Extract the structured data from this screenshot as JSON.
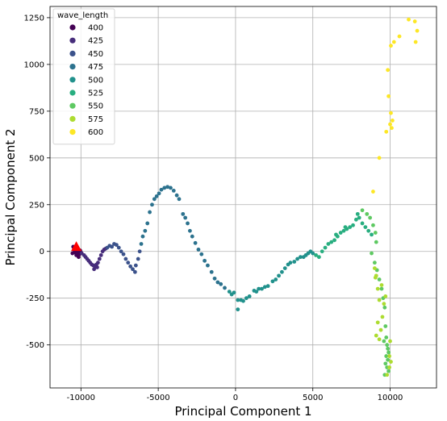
{
  "chart_data": {
    "type": "scatter",
    "title": "",
    "xlabel": "Principal Component 1",
    "ylabel": "Principal Component 2",
    "xlim": [
      -12000,
      13000
    ],
    "ylim": [
      -730,
      1310
    ],
    "xticks": [
      -10000,
      -5000,
      0,
      5000,
      10000
    ],
    "yticks": [
      -500,
      -250,
      0,
      250,
      500,
      750,
      1000,
      1250
    ],
    "grid": true,
    "legend": {
      "title": "wave_length",
      "placement": "top-left",
      "entries": [
        {
          "label": "400",
          "color": "#440154"
        },
        {
          "label": "425",
          "color": "#472d7b"
        },
        {
          "label": "450",
          "color": "#3b528b"
        },
        {
          "label": "475",
          "color": "#2c728e"
        },
        {
          "label": "500",
          "color": "#21918c"
        },
        {
          "label": "525",
          "color": "#28ae80"
        },
        {
          "label": "550",
          "color": "#5ec962"
        },
        {
          "label": "575",
          "color": "#addc30"
        },
        {
          "label": "600",
          "color": "#fde725"
        }
      ]
    },
    "marker": {
      "shape": "triangle",
      "color": "#ff0000",
      "x": -10300,
      "y": 20
    },
    "series": [
      {
        "name": "400",
        "color": "#440154",
        "points": [
          [
            -10500,
            25
          ],
          [
            -10450,
            10
          ],
          [
            -10400,
            -5
          ],
          [
            -10350,
            5
          ],
          [
            -10300,
            -20
          ],
          [
            -10250,
            -10
          ],
          [
            -10200,
            0
          ],
          [
            -10150,
            -30
          ],
          [
            -10100,
            -15
          ],
          [
            -10050,
            5
          ],
          [
            -10000,
            -5
          ],
          [
            -10550,
            -10
          ]
        ]
      },
      {
        "name": "425",
        "color": "#472d7b",
        "points": [
          [
            -9950,
            -10
          ],
          [
            -9800,
            -20
          ],
          [
            -9700,
            -30
          ],
          [
            -9600,
            -40
          ],
          [
            -9500,
            -50
          ],
          [
            -9400,
            -60
          ],
          [
            -9300,
            -70
          ],
          [
            -9200,
            -75
          ],
          [
            -9100,
            -80
          ],
          [
            -9000,
            -70
          ],
          [
            -8900,
            -60
          ],
          [
            -8800,
            -40
          ],
          [
            -8700,
            -20
          ],
          [
            -8600,
            0
          ],
          [
            -8500,
            10
          ],
          [
            -8400,
            15
          ],
          [
            -9150,
            -95
          ],
          [
            -8950,
            -85
          ]
        ]
      },
      {
        "name": "450",
        "color": "#3b528b",
        "points": [
          [
            -8300,
            20
          ],
          [
            -8150,
            30
          ],
          [
            -8000,
            25
          ],
          [
            -7850,
            40
          ],
          [
            -7700,
            35
          ],
          [
            -7550,
            20
          ],
          [
            -7400,
            0
          ],
          [
            -7250,
            -15
          ],
          [
            -7100,
            -40
          ],
          [
            -6950,
            -60
          ],
          [
            -6800,
            -80
          ],
          [
            -6650,
            -95
          ],
          [
            -6500,
            -110
          ],
          [
            -6450,
            -75
          ],
          [
            -6300,
            -40
          ],
          [
            -6200,
            0
          ]
        ]
      },
      {
        "name": "475",
        "color": "#2c728e",
        "points": [
          [
            -6100,
            40
          ],
          [
            -6000,
            80
          ],
          [
            -5850,
            110
          ],
          [
            -5700,
            150
          ],
          [
            -5550,
            210
          ],
          [
            -5400,
            250
          ],
          [
            -5250,
            280
          ],
          [
            -5100,
            295
          ],
          [
            -4950,
            310
          ],
          [
            -4800,
            330
          ],
          [
            -4600,
            340
          ],
          [
            -4400,
            345
          ],
          [
            -4200,
            340
          ],
          [
            -4000,
            325
          ],
          [
            -3800,
            300
          ],
          [
            -3650,
            280
          ],
          [
            -3400,
            200
          ],
          [
            -3250,
            180
          ],
          [
            -3100,
            150
          ],
          [
            -2950,
            110
          ],
          [
            -2800,
            80
          ],
          [
            -2600,
            45
          ],
          [
            -2400,
            10
          ],
          [
            -2200,
            -15
          ],
          [
            -2000,
            -50
          ],
          [
            -1800,
            -75
          ],
          [
            -1550,
            -110
          ],
          [
            -1350,
            -145
          ],
          [
            -1150,
            -165
          ],
          [
            -950,
            -175
          ],
          [
            -700,
            -195
          ]
        ]
      },
      {
        "name": "500",
        "color": "#21918c",
        "points": [
          [
            -400,
            -215
          ],
          [
            -250,
            -230
          ],
          [
            -100,
            -220
          ],
          [
            150,
            -260
          ],
          [
            350,
            -260
          ],
          [
            500,
            -265
          ],
          [
            700,
            -250
          ],
          [
            900,
            -240
          ],
          [
            1200,
            -210
          ],
          [
            1350,
            -215
          ],
          [
            1500,
            -200
          ],
          [
            1700,
            -200
          ],
          [
            1900,
            -190
          ],
          [
            2100,
            -185
          ],
          [
            2400,
            -160
          ],
          [
            2600,
            -150
          ],
          [
            2800,
            -130
          ],
          [
            3000,
            -110
          ],
          [
            3200,
            -90
          ],
          [
            3400,
            -70
          ],
          [
            3550,
            -60
          ],
          [
            3800,
            -55
          ],
          [
            4000,
            -40
          ],
          [
            4200,
            -30
          ],
          [
            4400,
            -30
          ],
          [
            4550,
            -20
          ],
          [
            4700,
            -10
          ],
          [
            4850,
            0
          ],
          [
            5000,
            -10
          ],
          [
            150,
            -310
          ]
        ]
      },
      {
        "name": "525",
        "color": "#28ae80",
        "points": [
          [
            5200,
            -20
          ],
          [
            5400,
            -30
          ],
          [
            5600,
            0
          ],
          [
            5800,
            20
          ],
          [
            6000,
            40
          ],
          [
            6200,
            50
          ],
          [
            6400,
            60
          ],
          [
            6600,
            80
          ],
          [
            6800,
            100
          ],
          [
            7000,
            110
          ],
          [
            7200,
            120
          ],
          [
            7400,
            130
          ],
          [
            7600,
            140
          ],
          [
            7800,
            170
          ],
          [
            8000,
            180
          ],
          [
            8200,
            150
          ],
          [
            8400,
            130
          ],
          [
            8600,
            110
          ],
          [
            8800,
            90
          ],
          [
            6500,
            90
          ],
          [
            7100,
            130
          ],
          [
            7900,
            200
          ]
        ]
      },
      {
        "name": "550",
        "color": "#5ec962",
        "points": [
          [
            8200,
            220
          ],
          [
            8500,
            200
          ],
          [
            8700,
            180
          ],
          [
            8900,
            140
          ],
          [
            9050,
            100
          ],
          [
            9100,
            50
          ],
          [
            8800,
            -10
          ],
          [
            9000,
            -60
          ],
          [
            9150,
            -100
          ],
          [
            9300,
            -150
          ],
          [
            9450,
            -200
          ],
          [
            9550,
            -250
          ],
          [
            9650,
            -300
          ],
          [
            9700,
            -400
          ],
          [
            9750,
            -460
          ],
          [
            9800,
            -500
          ],
          [
            9850,
            -520
          ],
          [
            9900,
            -540
          ],
          [
            9750,
            -560
          ],
          [
            9850,
            -580
          ],
          [
            9700,
            -600
          ],
          [
            9800,
            -620
          ],
          [
            9900,
            -640
          ],
          [
            9650,
            -660
          ],
          [
            9600,
            -480
          ]
        ]
      },
      {
        "name": "575",
        "color": "#addc30",
        "points": [
          [
            9100,
            -450
          ],
          [
            9200,
            -380
          ],
          [
            9300,
            -470
          ],
          [
            9400,
            -420
          ],
          [
            9500,
            -350
          ],
          [
            9600,
            -280
          ],
          [
            9700,
            -240
          ],
          [
            9300,
            -260
          ],
          [
            9200,
            -200
          ],
          [
            9100,
            -130
          ],
          [
            9000,
            -90
          ],
          [
            9050,
            -140
          ],
          [
            9450,
            -180
          ],
          [
            10000,
            -480
          ],
          [
            9950,
            -560
          ],
          [
            10050,
            -590
          ],
          [
            9950,
            -620
          ],
          [
            9800,
            -660
          ]
        ]
      },
      {
        "name": "600",
        "color": "#fde725",
        "points": [
          [
            8900,
            320
          ],
          [
            9300,
            500
          ],
          [
            9750,
            640
          ],
          [
            9900,
            830
          ],
          [
            10000,
            680
          ],
          [
            10100,
            660
          ],
          [
            10050,
            740
          ],
          [
            9850,
            970
          ],
          [
            10050,
            1100
          ],
          [
            10250,
            1120
          ],
          [
            10600,
            1150
          ],
          [
            11200,
            1240
          ],
          [
            11600,
            1230
          ],
          [
            11750,
            1180
          ],
          [
            11650,
            1120
          ],
          [
            10150,
            700
          ]
        ]
      }
    ]
  }
}
